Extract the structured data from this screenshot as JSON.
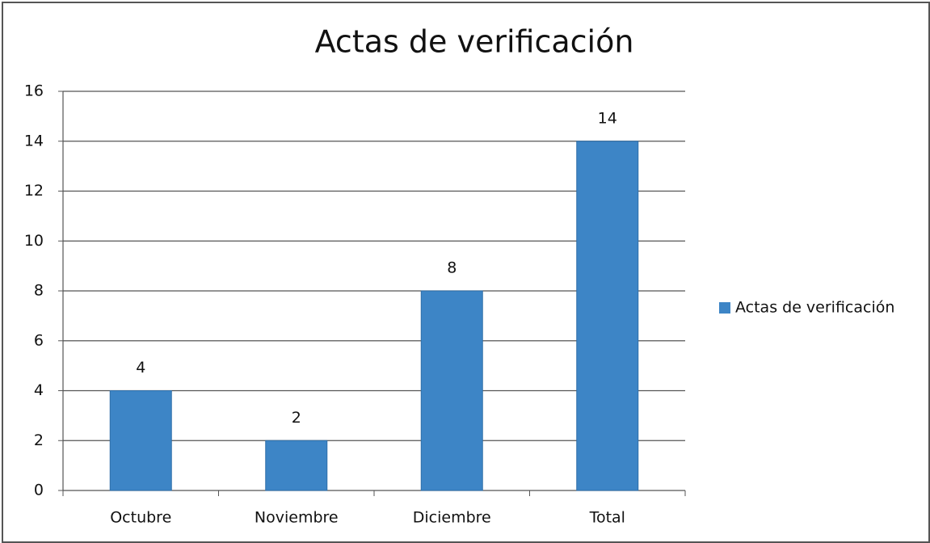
{
  "chart_data": {
    "type": "bar",
    "title": "Actas de verificación",
    "categories": [
      "Octubre",
      "Noviembre",
      "Diciembre",
      "Total"
    ],
    "series": [
      {
        "name": "Actas de verificación",
        "color": "#3d85c6",
        "values": [
          4,
          2,
          8,
          14
        ]
      }
    ],
    "ylim": [
      0,
      16
    ],
    "yticks": [
      0,
      2,
      4,
      6,
      8,
      10,
      12,
      14,
      16
    ],
    "grid": true,
    "legend": "right",
    "data_labels": true
  }
}
